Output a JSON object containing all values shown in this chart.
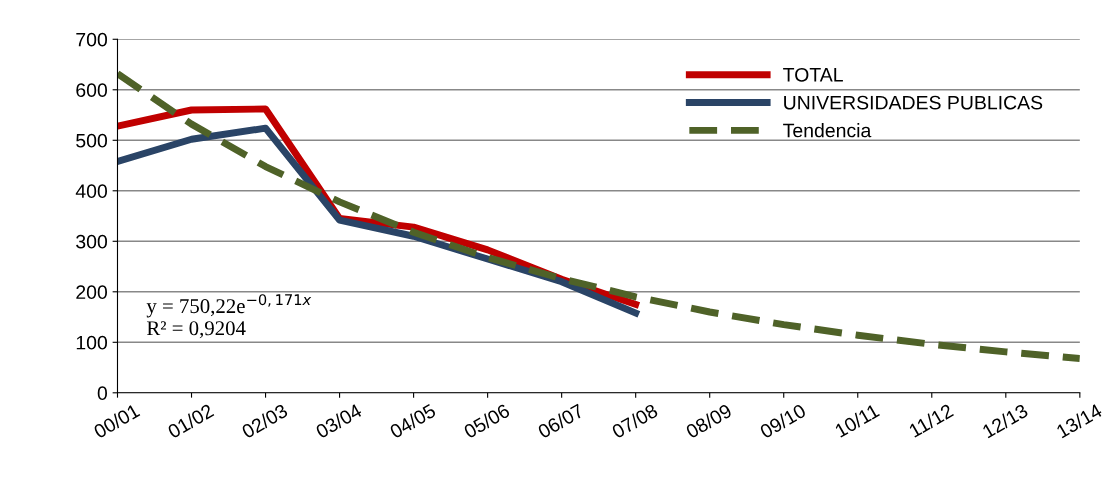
{
  "chart_data": {
    "type": "line",
    "categories": [
      "00/01",
      "01/02",
      "02/03",
      "03/04",
      "04/05",
      "05/06",
      "06/07",
      "07/08",
      "08/09",
      "09/10",
      "10/11",
      "11/12",
      "12/13",
      "13/14"
    ],
    "series": [
      {
        "name": "TOTAL",
        "color": "#c00000",
        "values": [
          528,
          560,
          562,
          345,
          328,
          283,
          225,
          175,
          null,
          null,
          null,
          null,
          null,
          null
        ]
      },
      {
        "name": "UNIVERSIDADES PUBLICAS",
        "color": "#2a4466",
        "values": [
          458,
          502,
          524,
          342,
          310,
          265,
          220,
          158,
          null,
          null,
          null,
          null,
          null,
          null
        ]
      },
      {
        "name": "Tendencia",
        "color": "#4f6228",
        "line_style": "dashed",
        "values": [
          632,
          532,
          448,
          378,
          318,
          268,
          226,
          190,
          160,
          135,
          114,
          96,
          81,
          68
        ]
      }
    ],
    "ylim": [
      0,
      700
    ],
    "yticks": [
      0,
      100,
      200,
      300,
      400,
      500,
      600,
      700
    ],
    "grid": "y",
    "legend": "top right",
    "marker": "none",
    "annotations": [
      "y = 750,22e$^{−0,171x}$\nR² = 0,9204"
    ]
  }
}
